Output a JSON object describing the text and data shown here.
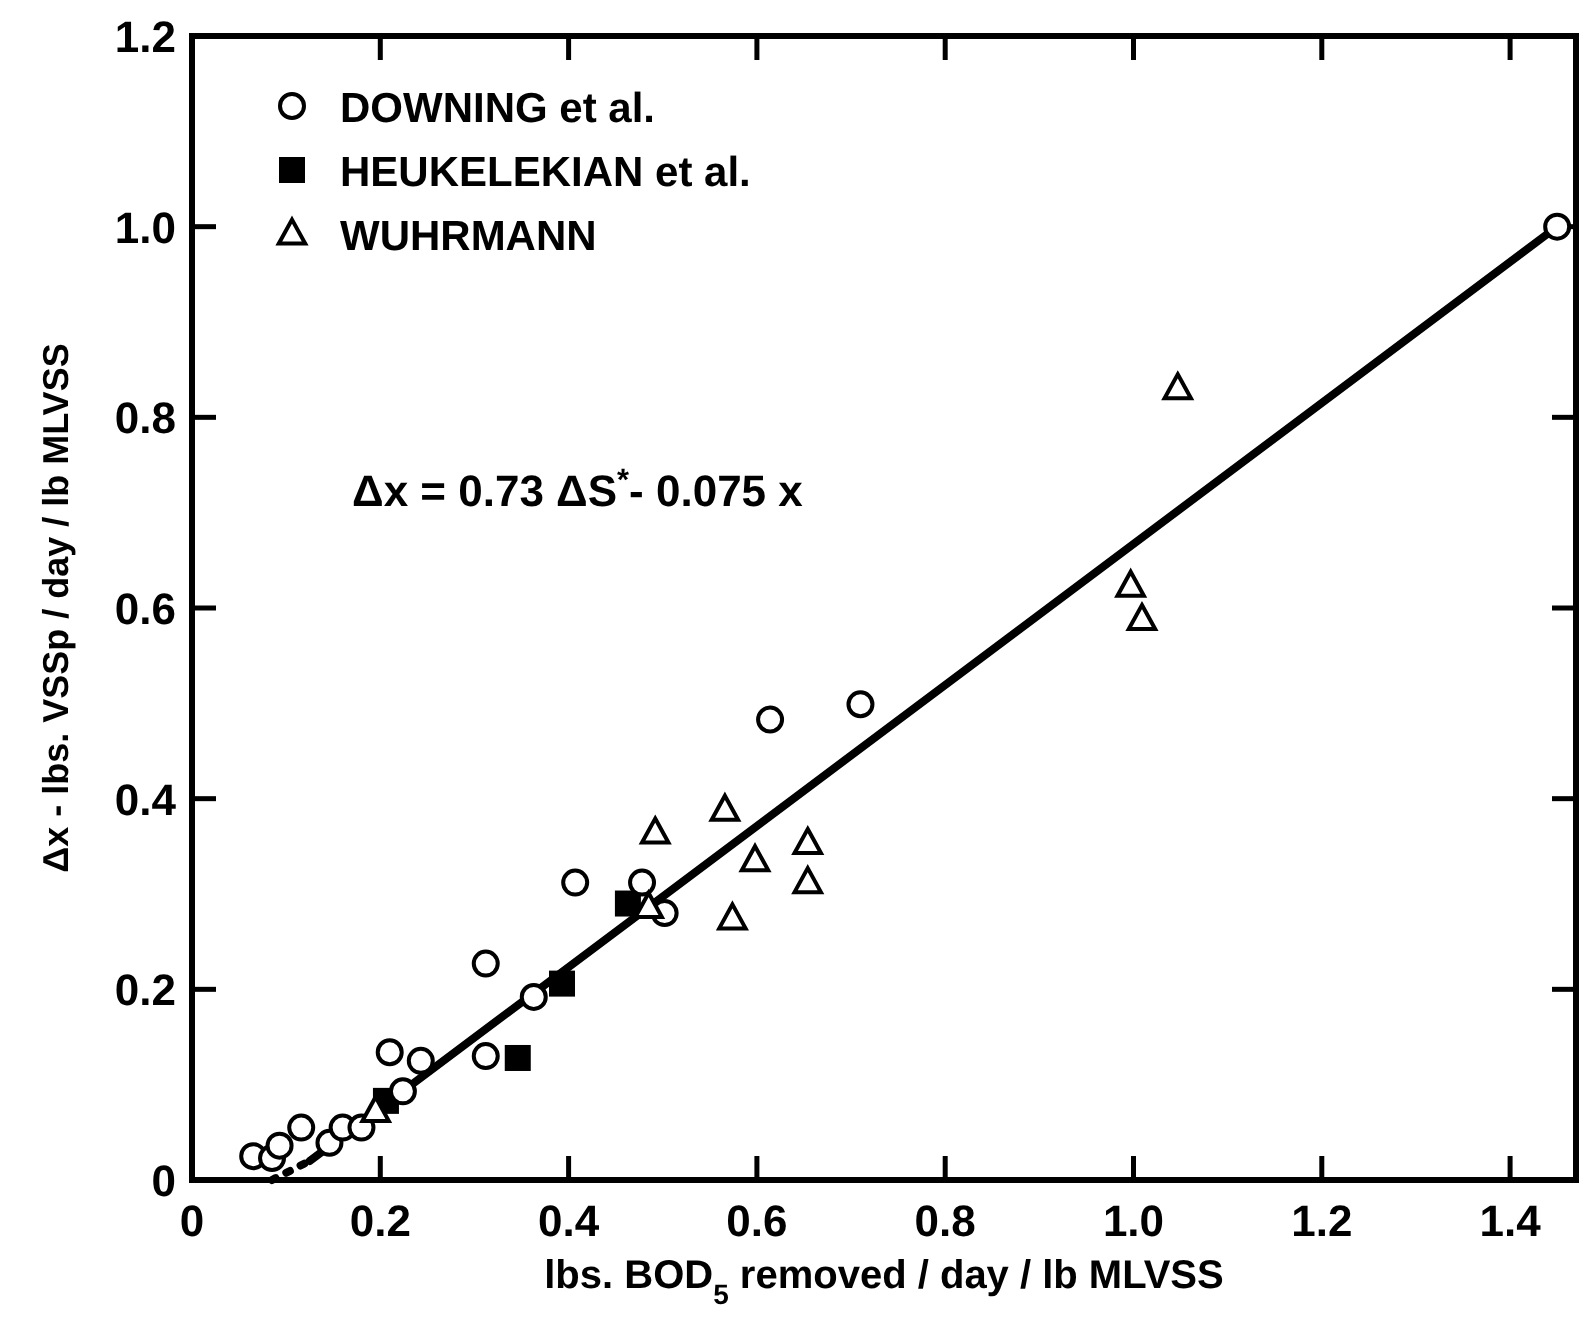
{
  "chart_data": {
    "type": "scatter",
    "xlabel": "lbs. BOD$_{5}$ removed / day / lb MLVSS",
    "ylabel": "Δx - lbs. VSSp / day / lb MLVSS",
    "xlim": [
      0,
      1.47
    ],
    "ylim": [
      0,
      1.2
    ],
    "xticks": [
      0,
      0.2,
      0.4,
      0.6,
      0.8,
      {
        "value": 1,
        "label": "1.0"
      },
      1.2,
      1.4
    ],
    "yticks": [
      0,
      0.2,
      0.4,
      0.6,
      0.8,
      {
        "value": 1,
        "label": "1.0"
      },
      1.2
    ],
    "grid": false,
    "legend": "top left",
    "annotations": [
      "Δx = 0.73 ΔS$^{*}$- 0.075 x"
    ],
    "series": [
      {
        "name": "DOWNING et al.",
        "color": "#000000",
        "marker": "circle",
        "x": [
          0.065,
          0.085,
          0.093,
          0.116,
          0.146,
          0.16,
          0.18,
          0.21,
          0.243,
          0.224,
          0.312,
          0.312,
          0.363,
          0.407,
          0.478,
          0.502,
          0.614,
          0.71,
          1.45
        ],
        "values": [
          0.025,
          0.023,
          0.036,
          0.055,
          0.039,
          0.055,
          0.055,
          0.134,
          0.125,
          0.093,
          0.227,
          0.13,
          0.192,
          0.312,
          0.312,
          0.28,
          0.483,
          0.499,
          1.0
        ]
      },
      {
        "name": "HEUKELEKIAN et al.",
        "color": "#000000",
        "marker": "square",
        "x": [
          0.206,
          0.346,
          0.393,
          0.463
        ],
        "values": [
          0.083,
          0.128,
          0.206,
          0.29
        ]
      },
      {
        "name": "WUHRMANN",
        "color": "#000000",
        "marker": "triangle",
        "x": [
          0.195,
          0.485,
          0.492,
          0.566,
          0.598,
          0.654,
          0.654,
          0.574,
          1.047,
          0.997,
          1.009
        ],
        "values": [
          0.072,
          0.286,
          0.364,
          0.388,
          0.335,
          0.353,
          0.312,
          0.274,
          0.83,
          0.623,
          0.588
        ]
      },
      {
        "type": "line",
        "color": "#000000",
        "line_style": "solid",
        "marker": "none",
        "x": [
          0.125,
          1.45
        ],
        "values": [
          0.02,
          1.0
        ]
      },
      {
        "type": "line",
        "color": "#000000",
        "line_style": "dotted",
        "marker": "none",
        "x": [
          0.085,
          0.125
        ],
        "values": [
          0.0,
          0.02
        ]
      }
    ]
  }
}
